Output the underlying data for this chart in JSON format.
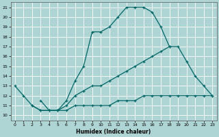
{
  "xlabel": "Humidex (Indice chaleur)",
  "xlim": [
    -0.5,
    23.5
  ],
  "ylim": [
    9.5,
    21.5
  ],
  "yticks": [
    10,
    11,
    12,
    13,
    14,
    15,
    16,
    17,
    18,
    19,
    20,
    21
  ],
  "xticks": [
    0,
    1,
    2,
    3,
    4,
    5,
    6,
    7,
    8,
    9,
    10,
    11,
    12,
    13,
    14,
    15,
    16,
    17,
    18,
    19,
    20,
    21,
    22,
    23
  ],
  "bg_color": "#aed4d4",
  "grid_color": "#c8e8e8",
  "line_color": "#006666",
  "line1_x": [
    0,
    1,
    2,
    3,
    4,
    5,
    6,
    7,
    8,
    9,
    10,
    11,
    12,
    13,
    14,
    15,
    16,
    17,
    18
  ],
  "line1_y": [
    13,
    12,
    11,
    10.5,
    10.5,
    10.5,
    11.5,
    13.5,
    15.0,
    18.5,
    18.5,
    19.0,
    20.0,
    21.0,
    21.0,
    21.0,
    20.5,
    19.0,
    17.0
  ],
  "line2_x": [
    3,
    4,
    5,
    6,
    7,
    8,
    9,
    10,
    11,
    12,
    13,
    14,
    15,
    16,
    17,
    18,
    19,
    20,
    21,
    22,
    23
  ],
  "line2_y": [
    11.5,
    10.5,
    10.5,
    11.0,
    12.0,
    12.5,
    13.0,
    13.0,
    13.5,
    14.0,
    14.5,
    15.0,
    15.5,
    16.0,
    16.5,
    17.0,
    17.0,
    15.5,
    14.0,
    13.0,
    12.0
  ],
  "line3_x": [
    2,
    3,
    4,
    5,
    6,
    7,
    8,
    9,
    10,
    11,
    12,
    13,
    14,
    15,
    16,
    17,
    18,
    19,
    20,
    21,
    22,
    23
  ],
  "line3_y": [
    11.0,
    10.5,
    10.5,
    10.5,
    10.5,
    11.0,
    11.0,
    11.0,
    11.0,
    11.0,
    11.5,
    11.5,
    11.5,
    12.0,
    12.0,
    12.0,
    12.0,
    12.0,
    12.0,
    12.0,
    12.0,
    12.0
  ]
}
